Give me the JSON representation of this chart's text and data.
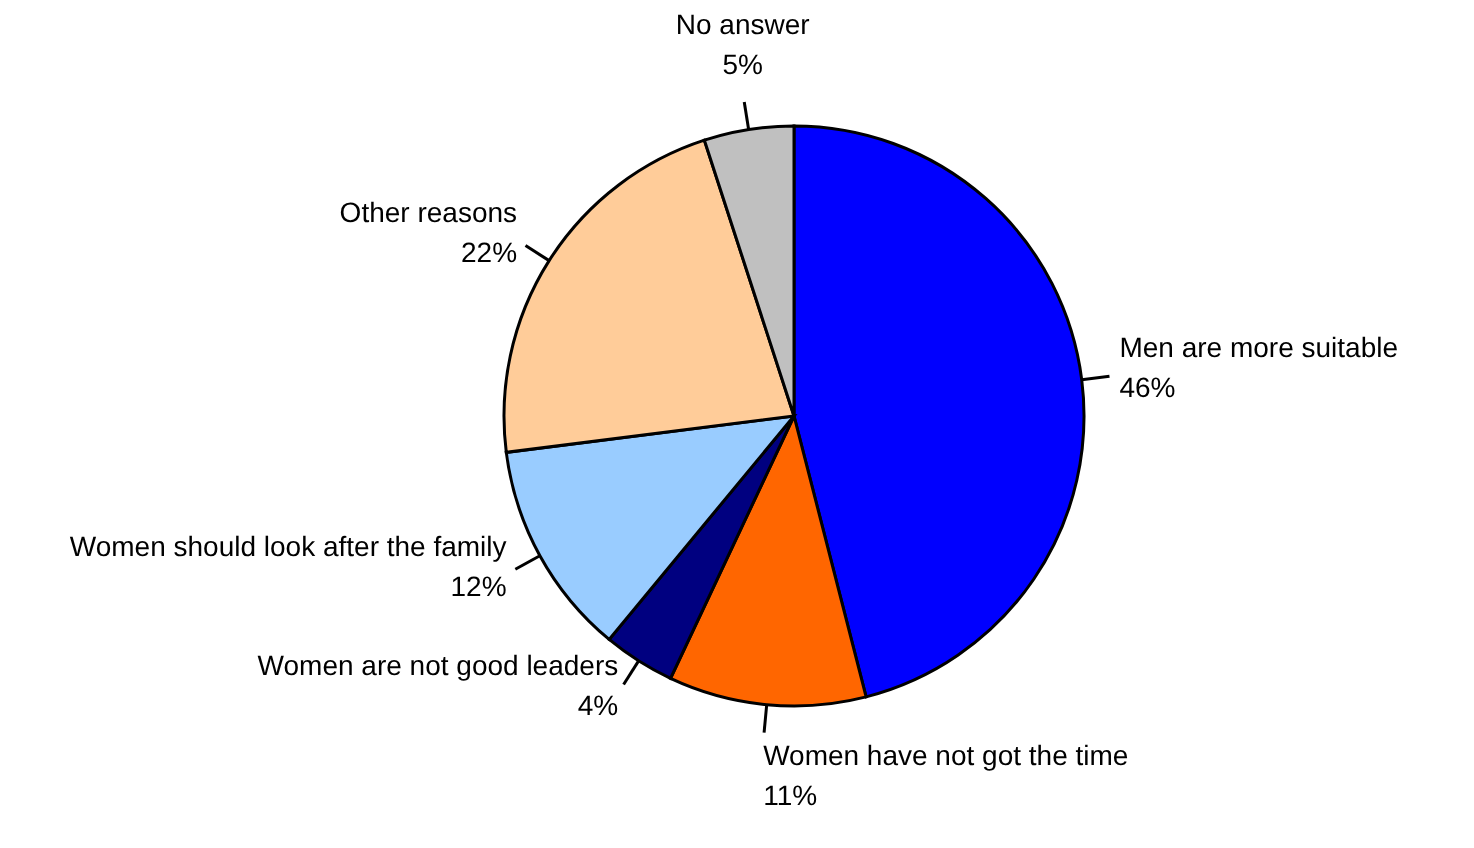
{
  "chart_data": {
    "type": "pie",
    "categories": [
      "Men are more suitable",
      "Women have not got the time",
      "Women are not good leaders",
      "Women should look after the family",
      "Other reasons",
      "No answer"
    ],
    "values": [
      46,
      11,
      4,
      12,
      22,
      5
    ],
    "colors": [
      "#0000ff",
      "#ff6600",
      "#000080",
      "#99ccff",
      "#ffcc99",
      "#c0c0c0"
    ],
    "value_labels": [
      "46%",
      "11%",
      "4%",
      "12%",
      "22%",
      "5%"
    ]
  }
}
